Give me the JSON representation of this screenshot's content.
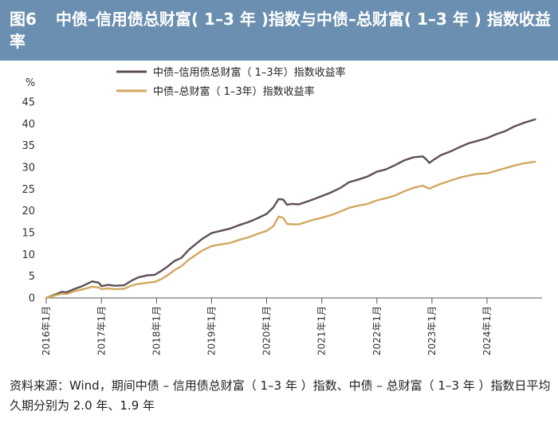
{
  "header": {
    "figure_label": "图6",
    "title": "中债–信用债总财富( 1–3 年 )指数与中债–总财富( 1–3 年 ) 指数收益率"
  },
  "footer": {
    "source": "资料来源：Wind，期间中债 – 信用债总财富（ 1–3 年 ）指数、中债 – 总财富（ 1–3 年 ）指数日平均久期分别为 2.0 年、1.9 年"
  },
  "colors": {
    "title_bar": "#6b8fb0",
    "credit_series": "#5e4f55",
    "total_series": "#d1a75e",
    "axis": "#555555"
  },
  "chart_data": {
    "type": "line",
    "title": "中债–信用债总财富( 1–3 年 )指数与中债–总财富( 1–3 年 ) 指数收益率",
    "unit_label": "%",
    "ylim": [
      0,
      45
    ],
    "yticks": [
      0,
      5,
      10,
      15,
      20,
      25,
      30,
      35,
      40,
      45
    ],
    "xlim": [
      "2016-01-01",
      "2024-12-31"
    ],
    "xtick_labels": [
      "2016年1月",
      "2017年1月",
      "2018年1月",
      "2019年1月",
      "2020年1月",
      "2021年1月",
      "2022年1月",
      "2023年1月",
      "2024年1月"
    ],
    "xtick_dates": [
      "2016-01-01",
      "2017-01-01",
      "2018-01-01",
      "2019-01-01",
      "2020-01-01",
      "2021-01-01",
      "2022-01-01",
      "2023-01-01",
      "2024-01-01"
    ],
    "grid": false,
    "legend_position": "top-left",
    "series": [
      {
        "name": "中债–信用债总财富（ 1–3年）指数收益率",
        "color": "#5e4f55",
        "points": [
          [
            "2016-01-01",
            0.0
          ],
          [
            "2016-03-01",
            0.8
          ],
          [
            "2016-04-15",
            1.4
          ],
          [
            "2016-05-15",
            1.3
          ],
          [
            "2016-07-01",
            2.0
          ],
          [
            "2016-09-01",
            2.8
          ],
          [
            "2016-11-01",
            3.8
          ],
          [
            "2016-12-15",
            3.5
          ],
          [
            "2017-01-01",
            2.7
          ],
          [
            "2017-02-15",
            3.0
          ],
          [
            "2017-04-01",
            2.8
          ],
          [
            "2017-06-01",
            2.9
          ],
          [
            "2017-07-15",
            3.9
          ],
          [
            "2017-09-01",
            4.7
          ],
          [
            "2017-11-01",
            5.2
          ],
          [
            "2017-12-20",
            5.3
          ],
          [
            "2018-02-01",
            6.2
          ],
          [
            "2018-03-15",
            7.2
          ],
          [
            "2018-05-01",
            8.5
          ],
          [
            "2018-06-15",
            9.2
          ],
          [
            "2018-08-01",
            11.0
          ],
          [
            "2018-09-15",
            12.3
          ],
          [
            "2018-11-01",
            13.6
          ],
          [
            "2019-01-01",
            14.9
          ],
          [
            "2019-03-01",
            15.4
          ],
          [
            "2019-05-01",
            15.9
          ],
          [
            "2019-07-01",
            16.7
          ],
          [
            "2019-09-01",
            17.4
          ],
          [
            "2019-11-01",
            18.3
          ],
          [
            "2020-01-01",
            19.3
          ],
          [
            "2020-02-15",
            20.8
          ],
          [
            "2020-03-20",
            22.7
          ],
          [
            "2020-04-20",
            22.6
          ],
          [
            "2020-05-15",
            21.4
          ],
          [
            "2020-06-15",
            21.6
          ],
          [
            "2020-08-01",
            21.5
          ],
          [
            "2020-09-15",
            22.0
          ],
          [
            "2020-11-01",
            22.6
          ],
          [
            "2021-01-01",
            23.4
          ],
          [
            "2021-03-01",
            24.2
          ],
          [
            "2021-05-01",
            25.2
          ],
          [
            "2021-07-01",
            26.6
          ],
          [
            "2021-09-01",
            27.2
          ],
          [
            "2021-11-01",
            27.9
          ],
          [
            "2022-01-01",
            29.0
          ],
          [
            "2022-03-01",
            29.5
          ],
          [
            "2022-05-01",
            30.5
          ],
          [
            "2022-07-01",
            31.6
          ],
          [
            "2022-09-01",
            32.3
          ],
          [
            "2022-11-01",
            32.5
          ],
          [
            "2022-11-25",
            31.8
          ],
          [
            "2022-12-15",
            31.0
          ],
          [
            "2023-01-15",
            31.8
          ],
          [
            "2023-03-01",
            32.8
          ],
          [
            "2023-05-01",
            33.6
          ],
          [
            "2023-07-01",
            34.6
          ],
          [
            "2023-09-01",
            35.5
          ],
          [
            "2023-11-01",
            36.1
          ],
          [
            "2024-01-01",
            36.7
          ],
          [
            "2024-03-01",
            37.6
          ],
          [
            "2024-05-01",
            38.3
          ],
          [
            "2024-07-01",
            39.4
          ],
          [
            "2024-09-01",
            40.2
          ],
          [
            "2024-11-15",
            41.0
          ]
        ]
      },
      {
        "name": "中债–总财富（ 1–3年）指数收益率",
        "color": "#d1a75e",
        "points": [
          [
            "2016-01-01",
            0.0
          ],
          [
            "2016-03-01",
            0.6
          ],
          [
            "2016-04-15",
            1.0
          ],
          [
            "2016-05-15",
            0.9
          ],
          [
            "2016-07-01",
            1.5
          ],
          [
            "2016-09-01",
            2.0
          ],
          [
            "2016-11-01",
            2.6
          ],
          [
            "2016-12-15",
            2.4
          ],
          [
            "2017-01-01",
            2.0
          ],
          [
            "2017-02-15",
            2.2
          ],
          [
            "2017-04-01",
            2.0
          ],
          [
            "2017-06-01",
            2.1
          ],
          [
            "2017-07-15",
            2.8
          ],
          [
            "2017-09-01",
            3.2
          ],
          [
            "2017-11-01",
            3.5
          ],
          [
            "2017-12-20",
            3.7
          ],
          [
            "2018-02-01",
            4.3
          ],
          [
            "2018-03-15",
            5.2
          ],
          [
            "2018-05-01",
            6.4
          ],
          [
            "2018-06-15",
            7.3
          ],
          [
            "2018-08-01",
            8.7
          ],
          [
            "2018-09-15",
            9.8
          ],
          [
            "2018-11-01",
            10.9
          ],
          [
            "2019-01-01",
            11.9
          ],
          [
            "2019-03-01",
            12.3
          ],
          [
            "2019-05-01",
            12.6
          ],
          [
            "2019-07-01",
            13.3
          ],
          [
            "2019-09-01",
            13.9
          ],
          [
            "2019-11-01",
            14.7
          ],
          [
            "2020-01-01",
            15.4
          ],
          [
            "2020-02-15",
            16.5
          ],
          [
            "2020-03-20",
            18.7
          ],
          [
            "2020-04-20",
            18.4
          ],
          [
            "2020-05-15",
            17.0
          ],
          [
            "2020-06-15",
            16.9
          ],
          [
            "2020-08-01",
            16.9
          ],
          [
            "2020-09-15",
            17.4
          ],
          [
            "2020-11-01",
            17.9
          ],
          [
            "2021-01-01",
            18.4
          ],
          [
            "2021-03-01",
            19.0
          ],
          [
            "2021-05-01",
            19.8
          ],
          [
            "2021-07-01",
            20.7
          ],
          [
            "2021-09-01",
            21.2
          ],
          [
            "2021-11-01",
            21.6
          ],
          [
            "2022-01-01",
            22.4
          ],
          [
            "2022-03-01",
            22.9
          ],
          [
            "2022-05-01",
            23.5
          ],
          [
            "2022-07-01",
            24.5
          ],
          [
            "2022-09-01",
            25.3
          ],
          [
            "2022-11-01",
            25.8
          ],
          [
            "2022-11-25",
            25.4
          ],
          [
            "2022-12-15",
            25.1
          ],
          [
            "2023-01-15",
            25.6
          ],
          [
            "2023-03-01",
            26.2
          ],
          [
            "2023-05-01",
            26.9
          ],
          [
            "2023-07-01",
            27.6
          ],
          [
            "2023-09-01",
            28.1
          ],
          [
            "2023-11-01",
            28.5
          ],
          [
            "2024-01-01",
            28.6
          ],
          [
            "2024-03-01",
            29.2
          ],
          [
            "2024-05-01",
            29.8
          ],
          [
            "2024-07-01",
            30.4
          ],
          [
            "2024-09-01",
            30.9
          ],
          [
            "2024-11-15",
            31.3
          ]
        ]
      }
    ]
  }
}
